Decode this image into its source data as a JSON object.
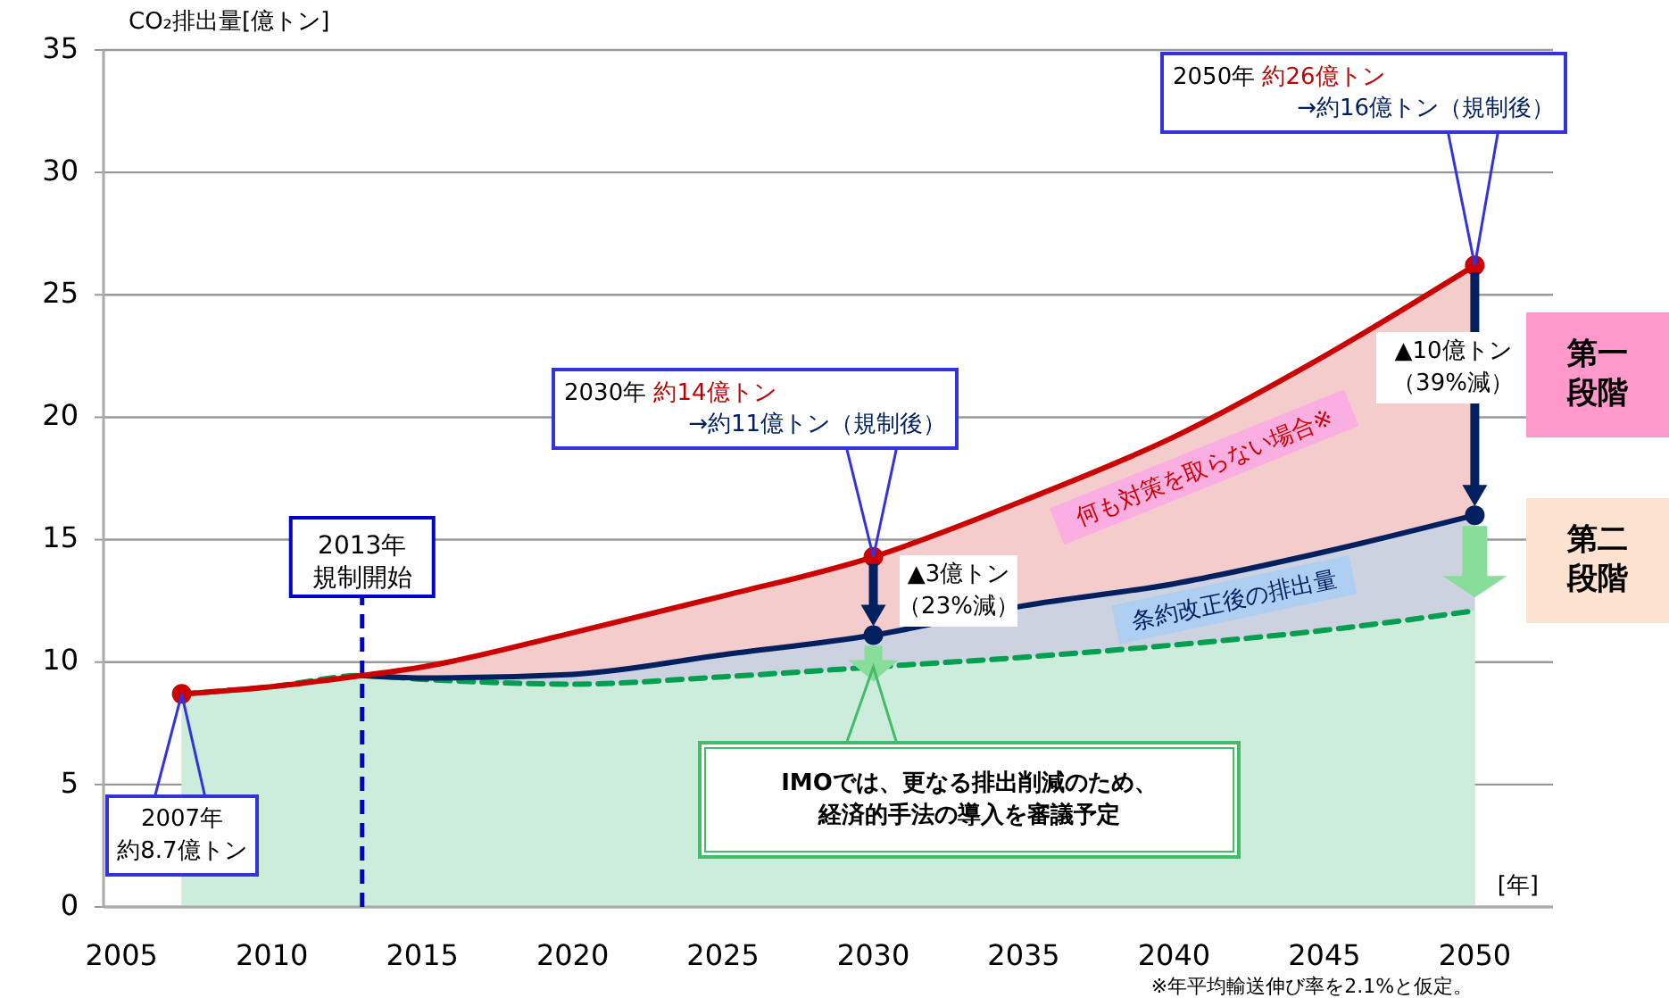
{
  "chart_data": {
    "type": "area",
    "ylabel": "CO₂排出量[億トン]",
    "xlabel": "[年]",
    "xlim": [
      2004.4,
      2052.6
    ],
    "xticks": [
      2005,
      2010,
      2015,
      2020,
      2025,
      2030,
      2035,
      2040,
      2045,
      2050
    ],
    "ylim": [
      0,
      35
    ],
    "yticks": [
      0,
      5,
      10,
      15,
      20,
      25,
      30,
      35
    ],
    "grid": "y",
    "series": [
      {
        "name": "何も対策を取らない場合※",
        "color": "#cc0000",
        "line_style": "solid",
        "x": [
          2007,
          2010,
          2013,
          2015,
          2020,
          2025,
          2030,
          2035,
          2040,
          2045,
          2050
        ],
        "values": [
          8.7,
          9.0,
          9.45,
          9.8,
          11.2,
          12.7,
          14.3,
          16.6,
          19.2,
          22.5,
          26.2
        ]
      },
      {
        "name": "条約改正後の排出量",
        "color": "#002060",
        "line_style": "solid",
        "x": [
          2013,
          2015,
          2020,
          2025,
          2030,
          2035,
          2040,
          2045,
          2050
        ],
        "values": [
          9.45,
          9.35,
          9.5,
          10.3,
          11.1,
          12.3,
          13.2,
          14.5,
          16.0
        ]
      },
      {
        "color": "#00a050",
        "line_style": "dashed",
        "x": [
          2007,
          2010,
          2013,
          2015,
          2020,
          2025,
          2030,
          2035,
          2040,
          2045,
          2050
        ],
        "values": [
          8.7,
          9.0,
          9.45,
          9.3,
          9.1,
          9.4,
          9.8,
          10.2,
          10.7,
          11.3,
          12.1
        ]
      },
      {
        "type": "scatter",
        "color": "#cc0000",
        "marker": "circle",
        "x": [
          2007,
          2030,
          2050
        ],
        "values": [
          8.7,
          14.3,
          26.2
        ]
      },
      {
        "type": "scatter",
        "color": "#002060",
        "marker": "circle",
        "x": [
          2030,
          2050
        ],
        "values": [
          11.1,
          16.0
        ]
      }
    ],
    "ref_lines": [
      {
        "axis": "x",
        "value": 2013,
        "label": "2013年規制開始",
        "color": "#0000cc",
        "line_style": "dashed"
      }
    ],
    "annotations": [
      "2007年約8.7億トン",
      "2030年 約14億トン\n→約11億トン（規制後）",
      "2050年 約26億トン\n→約16億トン（規制後）",
      "▲3億トン（23%減）",
      "▲10億トン（39%減）",
      "IMOでは、更なる排出削減のため、経済的手法の導入を審議予定",
      "第一段階",
      "第二段階",
      "※年平均輸送伸び率を2.1%と仮定。"
    ]
  }
}
